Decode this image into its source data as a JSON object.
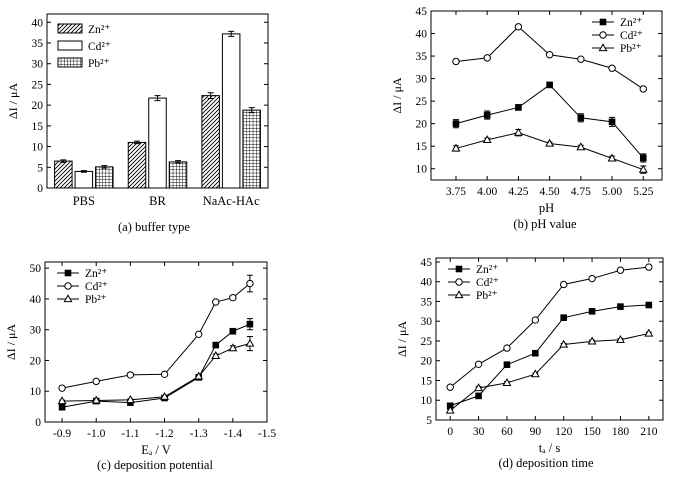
{
  "colors": {
    "ink": "#000000",
    "paper": "#ffffff"
  },
  "chart_data": [
    {
      "id": "a",
      "type": "bar",
      "caption": "(a) buffer type",
      "ylabel": "ΔI / μA",
      "ylim": [
        0,
        42
      ],
      "yticks": [
        0,
        5,
        10,
        15,
        20,
        25,
        30,
        35,
        40
      ],
      "categories": [
        "PBS",
        "BR",
        "NaAc-HAc"
      ],
      "legend_position": "top-left",
      "series": [
        {
          "name": "Zn²⁺",
          "fill": "diagonal-hatch",
          "values": [
            6.5,
            11.0,
            22.3
          ],
          "errors": [
            0.3,
            0.3,
            0.7
          ]
        },
        {
          "name": "Cd²⁺",
          "fill": "empty",
          "values": [
            4.0,
            21.7,
            37.2
          ],
          "errors": [
            0.2,
            0.6,
            0.6
          ]
        },
        {
          "name": "Pb²⁺",
          "fill": "crosshatch",
          "values": [
            5.1,
            6.3,
            18.8
          ],
          "errors": [
            0.3,
            0.3,
            0.6
          ]
        }
      ]
    },
    {
      "id": "b",
      "type": "line",
      "caption": "(b) pH value",
      "xlabel": "pH",
      "ylabel": "ΔI / μA",
      "xlim": [
        3.55,
        5.4
      ],
      "ylim": [
        7.5,
        45
      ],
      "xticks": [
        3.75,
        4.0,
        4.25,
        4.5,
        4.75,
        5.0,
        5.25
      ],
      "xtick_labels": [
        "3.75",
        "4.00",
        "4.25",
        "4.50",
        "4.75",
        "5.00",
        "5.25"
      ],
      "yticks": [
        10,
        15,
        20,
        25,
        30,
        35,
        40,
        45
      ],
      "legend_position": "top-right",
      "x": [
        3.75,
        4.0,
        4.25,
        4.5,
        4.75,
        5.0,
        5.25
      ],
      "series": [
        {
          "name": "Zn²⁺",
          "marker": "square-filled",
          "values": [
            20.0,
            21.9,
            23.6,
            28.6,
            21.3,
            20.4,
            12.4
          ],
          "errors": [
            0.9,
            0.9,
            0.6,
            0.5,
            0.9,
            1.0,
            0.9
          ]
        },
        {
          "name": "Cd²⁺",
          "marker": "circle-open",
          "values": [
            33.8,
            34.6,
            41.5,
            35.3,
            34.3,
            32.3,
            27.7
          ],
          "errors": [
            0.4,
            0.3,
            0.3,
            0.3,
            0.3,
            0.3,
            0.4
          ]
        },
        {
          "name": "Pb²⁺",
          "marker": "triangle-open",
          "values": [
            14.5,
            16.4,
            18.0,
            15.6,
            14.8,
            12.3,
            9.8
          ],
          "errors": [
            0.6,
            0.4,
            0.7,
            0.3,
            0.4,
            0.5,
            0.8
          ]
        }
      ]
    },
    {
      "id": "c",
      "type": "line",
      "caption": "(c) deposition potential",
      "xlabel": "Eₐ / V",
      "ylabel": "ΔI / μA",
      "xlim": [
        -0.85,
        -1.5
      ],
      "ylim": [
        0,
        52
      ],
      "xticks": [
        -0.9,
        -1.0,
        -1.1,
        -1.2,
        -1.3,
        -1.4,
        -1.5
      ],
      "xtick_labels": [
        "-0.9",
        "-1.0",
        "-1.1",
        "-1.2",
        "-1.3",
        "-1.4",
        "-1.5"
      ],
      "yticks": [
        0,
        10,
        20,
        30,
        40,
        50
      ],
      "legend_position": "top-left",
      "x": [
        -0.9,
        -1.0,
        -1.1,
        -1.2,
        -1.3,
        -1.35,
        -1.4,
        -1.45
      ],
      "series": [
        {
          "name": "Zn²⁺",
          "marker": "square-filled",
          "values": [
            4.8,
            6.8,
            6.3,
            7.8,
            14.5,
            25.0,
            29.5,
            31.8
          ],
          "errors": [
            0.4,
            0.4,
            0.4,
            0.4,
            0.6,
            0.6,
            0.8,
            1.8
          ]
        },
        {
          "name": "Cd²⁺",
          "marker": "circle-open",
          "values": [
            11.0,
            13.2,
            15.3,
            15.5,
            28.5,
            39.0,
            40.4,
            45.0
          ],
          "errors": [
            0.4,
            0.4,
            0.4,
            0.4,
            0.5,
            0.5,
            0.7,
            2.7
          ]
        },
        {
          "name": "Pb²⁺",
          "marker": "triangle-open",
          "values": [
            6.8,
            7.0,
            7.2,
            8.2,
            14.8,
            21.5,
            24.0,
            25.5
          ],
          "errors": [
            0.3,
            0.3,
            0.3,
            0.4,
            0.5,
            0.6,
            0.8,
            2.3
          ]
        }
      ]
    },
    {
      "id": "d",
      "type": "line",
      "caption": "(d) deposition time",
      "xlabel": "tₐ / s",
      "ylabel": "ΔI / μA",
      "xlim": [
        -15,
        225
      ],
      "ylim": [
        5,
        46
      ],
      "xticks": [
        0,
        30,
        60,
        90,
        120,
        150,
        180,
        210
      ],
      "xtick_labels": [
        "0",
        "30",
        "60",
        "90",
        "120",
        "150",
        "180",
        "210"
      ],
      "yticks": [
        5,
        10,
        15,
        20,
        25,
        30,
        35,
        40,
        45
      ],
      "legend_position": "top-left",
      "x": [
        0,
        30,
        60,
        90,
        120,
        150,
        180,
        210
      ],
      "series": [
        {
          "name": "Zn²⁺",
          "marker": "square-filled",
          "values": [
            8.6,
            11.1,
            19.0,
            21.9,
            30.9,
            32.5,
            33.7,
            34.1
          ],
          "errors": [
            0.3,
            0.3,
            0.3,
            0.3,
            0.3,
            0.3,
            0.3,
            0.3
          ]
        },
        {
          "name": "Cd²⁺",
          "marker": "circle-open",
          "values": [
            13.3,
            19.1,
            23.2,
            30.3,
            39.3,
            40.8,
            42.9,
            43.7
          ],
          "errors": [
            0.3,
            0.3,
            0.3,
            0.3,
            0.3,
            0.3,
            0.3,
            0.3
          ]
        },
        {
          "name": "Pb²⁺",
          "marker": "triangle-open",
          "values": [
            7.4,
            13.1,
            14.4,
            16.6,
            24.1,
            24.9,
            25.3,
            26.9
          ],
          "errors": [
            0.3,
            0.3,
            0.3,
            0.3,
            0.3,
            0.3,
            0.3,
            0.3
          ]
        }
      ]
    }
  ]
}
